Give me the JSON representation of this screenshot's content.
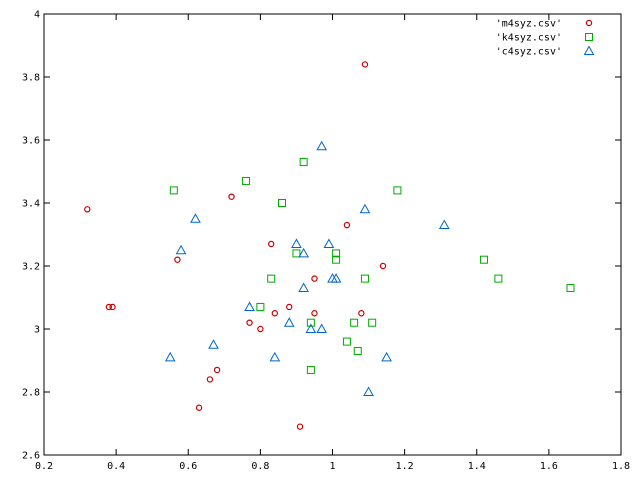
{
  "chart_data": {
    "type": "scatter",
    "xlim": [
      0.2,
      1.8
    ],
    "ylim": [
      2.6,
      4.0
    ],
    "x_ticks": [
      "0.2",
      "0.4",
      "0.6",
      "0.8",
      "1",
      "1.2",
      "1.4",
      "1.6",
      "1.8"
    ],
    "y_ticks": [
      "2.6",
      "2.8",
      "3",
      "3.2",
      "3.4",
      "3.6",
      "3.8",
      "4"
    ],
    "grid": false,
    "legend_position": "top-right",
    "series": [
      {
        "name": "'m4syz.csv'",
        "marker": "circle",
        "color": "#cc0000",
        "points": [
          [
            0.32,
            3.38
          ],
          [
            0.38,
            3.07
          ],
          [
            0.39,
            3.07
          ],
          [
            0.57,
            3.22
          ],
          [
            0.63,
            2.75
          ],
          [
            0.66,
            2.84
          ],
          [
            0.68,
            2.87
          ],
          [
            0.72,
            3.42
          ],
          [
            0.77,
            3.02
          ],
          [
            0.8,
            3.0
          ],
          [
            0.83,
            3.27
          ],
          [
            0.84,
            3.05
          ],
          [
            0.88,
            3.07
          ],
          [
            0.91,
            2.69
          ],
          [
            0.95,
            3.16
          ],
          [
            0.95,
            3.05
          ],
          [
            1.04,
            3.33
          ],
          [
            1.08,
            3.05
          ],
          [
            1.09,
            3.84
          ],
          [
            1.14,
            3.2
          ]
        ]
      },
      {
        "name": "'k4syz.csv'",
        "marker": "square",
        "color": "#00aa00",
        "points": [
          [
            0.56,
            3.44
          ],
          [
            0.76,
            3.47
          ],
          [
            0.8,
            3.07
          ],
          [
            0.83,
            3.16
          ],
          [
            0.86,
            3.4
          ],
          [
            0.9,
            3.24
          ],
          [
            0.92,
            3.53
          ],
          [
            0.94,
            3.02
          ],
          [
            0.94,
            2.87
          ],
          [
            1.01,
            3.24
          ],
          [
            1.01,
            3.22
          ],
          [
            1.04,
            2.96
          ],
          [
            1.06,
            3.02
          ],
          [
            1.07,
            2.93
          ],
          [
            1.09,
            3.16
          ],
          [
            1.11,
            3.02
          ],
          [
            1.18,
            3.44
          ],
          [
            1.42,
            3.22
          ],
          [
            1.46,
            3.16
          ],
          [
            1.66,
            3.13
          ]
        ]
      },
      {
        "name": "'c4syz.csv'",
        "marker": "triangle",
        "color": "#0066cc",
        "points": [
          [
            0.55,
            2.91
          ],
          [
            0.58,
            3.25
          ],
          [
            0.62,
            3.35
          ],
          [
            0.67,
            2.95
          ],
          [
            0.77,
            3.07
          ],
          [
            0.84,
            2.91
          ],
          [
            0.88,
            3.02
          ],
          [
            0.9,
            3.27
          ],
          [
            0.92,
            3.13
          ],
          [
            0.92,
            3.24
          ],
          [
            0.94,
            3.0
          ],
          [
            0.97,
            3.0
          ],
          [
            0.97,
            3.58
          ],
          [
            0.99,
            3.27
          ],
          [
            1.0,
            3.16
          ],
          [
            1.01,
            3.16
          ],
          [
            1.09,
            3.38
          ],
          [
            1.1,
            2.8
          ],
          [
            1.15,
            2.91
          ],
          [
            1.31,
            3.33
          ]
        ]
      }
    ]
  }
}
